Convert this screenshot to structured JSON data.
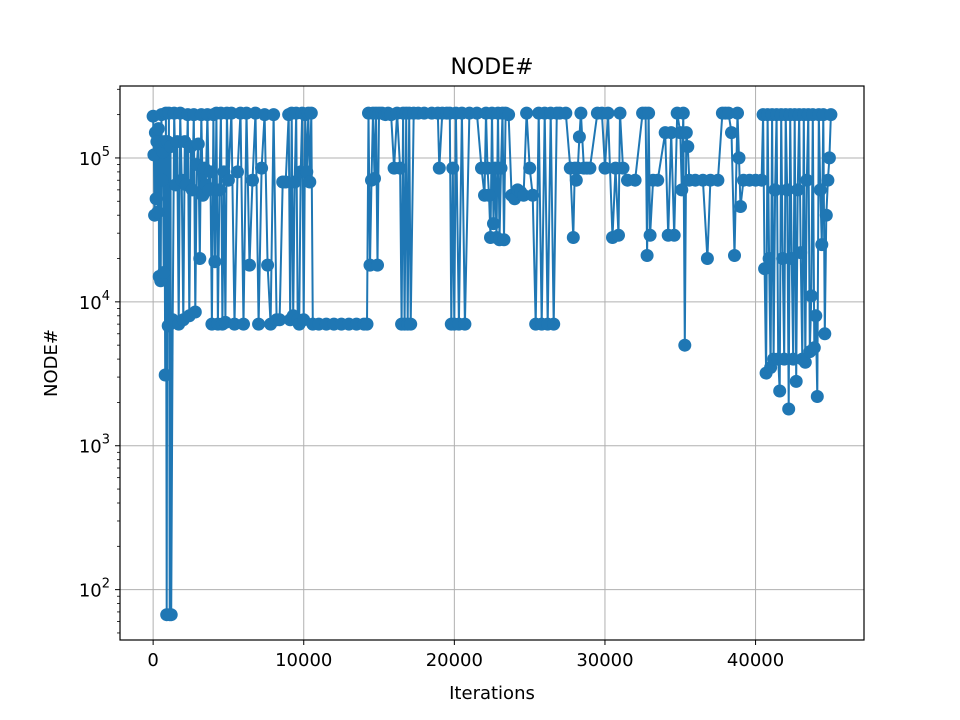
{
  "chart_data": {
    "type": "line",
    "title": "NODE#",
    "xlabel": "Iterations",
    "ylabel": "NODE#",
    "xlim": [
      -2200,
      47200
    ],
    "ylim_log10": [
      1.65,
      5.5
    ],
    "yscale": "log",
    "grid": true,
    "marker": "circle",
    "x_ticks": [
      0,
      10000,
      20000,
      30000,
      40000
    ],
    "x_tick_labels": [
      "0",
      "10000",
      "20000",
      "30000",
      "40000"
    ],
    "y_ticks": [
      100,
      1000,
      10000,
      100000
    ],
    "y_tick_labels": [
      {
        "base": "10",
        "exp": "2"
      },
      {
        "base": "10",
        "exp": "3"
      },
      {
        "base": "10",
        "exp": "4"
      },
      {
        "base": "10",
        "exp": "5"
      }
    ],
    "series": [
      {
        "color": "#1f77b4",
        "points": [
          [
            0,
            195000
          ],
          [
            50,
            105000
          ],
          [
            100,
            40000
          ],
          [
            150,
            150000
          ],
          [
            200,
            52000
          ],
          [
            250,
            130000
          ],
          [
            300,
            42000
          ],
          [
            350,
            160000
          ],
          [
            400,
            15000
          ],
          [
            450,
            120000
          ],
          [
            500,
            14000
          ],
          [
            550,
            200000
          ],
          [
            600,
            70000
          ],
          [
            650,
            110000
          ],
          [
            700,
            16000
          ],
          [
            750,
            130000
          ],
          [
            800,
            3100
          ],
          [
            850,
            205000
          ],
          [
            900,
            67
          ],
          [
            950,
            130000
          ],
          [
            1000,
            6800
          ],
          [
            1050,
            205000
          ],
          [
            1100,
            67
          ],
          [
            1150,
            120000
          ],
          [
            1200,
            67
          ],
          [
            1300,
            7500
          ],
          [
            1400,
            205000
          ],
          [
            1500,
            65000
          ],
          [
            1600,
            130000
          ],
          [
            1700,
            7000
          ],
          [
            1800,
            205000
          ],
          [
            1900,
            70000
          ],
          [
            2000,
            7500
          ],
          [
            2100,
            130000
          ],
          [
            2200,
            65000
          ],
          [
            2300,
            200000
          ],
          [
            2400,
            8000
          ],
          [
            2500,
            120000
          ],
          [
            2600,
            60000
          ],
          [
            2700,
            200000
          ],
          [
            2800,
            8500
          ],
          [
            2900,
            90000
          ],
          [
            3000,
            125000
          ],
          [
            3100,
            20000
          ],
          [
            3200,
            200000
          ],
          [
            3300,
            55000
          ],
          [
            3400,
            85000
          ],
          [
            3500,
            65000
          ],
          [
            3600,
            200000
          ],
          [
            3700,
            60000
          ],
          [
            3800,
            80000
          ],
          [
            3900,
            7000
          ],
          [
            4000,
            200000
          ],
          [
            4100,
            19000
          ],
          [
            4200,
            205000
          ],
          [
            4300,
            7000
          ],
          [
            4400,
            60000
          ],
          [
            4500,
            205000
          ],
          [
            4600,
            7000
          ],
          [
            4700,
            80000
          ],
          [
            4800,
            7200
          ],
          [
            4900,
            205000
          ],
          [
            5000,
            70000
          ],
          [
            5200,
            205000
          ],
          [
            5400,
            7000
          ],
          [
            5600,
            80000
          ],
          [
            5800,
            205000
          ],
          [
            6000,
            7000
          ],
          [
            6200,
            205000
          ],
          [
            6400,
            18000
          ],
          [
            6600,
            70000
          ],
          [
            6800,
            205000
          ],
          [
            7000,
            7000
          ],
          [
            7200,
            85000
          ],
          [
            7400,
            200000
          ],
          [
            7600,
            18000
          ],
          [
            7800,
            7000
          ],
          [
            8000,
            200000
          ],
          [
            8200,
            7500
          ],
          [
            8400,
            7500
          ],
          [
            8600,
            68000
          ],
          [
            8800,
            68000
          ],
          [
            9000,
            200000
          ],
          [
            9100,
            7500
          ],
          [
            9200,
            205000
          ],
          [
            9300,
            8000
          ],
          [
            9400,
            68000
          ],
          [
            9500,
            205000
          ],
          [
            9600,
            7500
          ],
          [
            9700,
            7000
          ],
          [
            9800,
            80000
          ],
          [
            9900,
            205000
          ],
          [
            10000,
            7500
          ],
          [
            10100,
            200000
          ],
          [
            10200,
            80000
          ],
          [
            10300,
            205000
          ],
          [
            10400,
            68000
          ],
          [
            10500,
            205000
          ],
          [
            10600,
            7000
          ],
          [
            11000,
            7000
          ],
          [
            11500,
            7000
          ],
          [
            12000,
            7000
          ],
          [
            12500,
            7000
          ],
          [
            13000,
            7000
          ],
          [
            13500,
            7000
          ],
          [
            14000,
            7000
          ],
          [
            14200,
            7000
          ],
          [
            14300,
            205000
          ],
          [
            14400,
            18000
          ],
          [
            14500,
            70000
          ],
          [
            14600,
            205000
          ],
          [
            14700,
            72000
          ],
          [
            14800,
            205000
          ],
          [
            14900,
            18000
          ],
          [
            15000,
            205000
          ],
          [
            15200,
            205000
          ],
          [
            15400,
            200000
          ],
          [
            15600,
            205000
          ],
          [
            15800,
            200000
          ],
          [
            16000,
            85000
          ],
          [
            16200,
            205000
          ],
          [
            16400,
            85000
          ],
          [
            16500,
            7000
          ],
          [
            16600,
            205000
          ],
          [
            16700,
            7000
          ],
          [
            16800,
            205000
          ],
          [
            16900,
            7000
          ],
          [
            17000,
            205000
          ],
          [
            17100,
            7000
          ],
          [
            17300,
            205000
          ],
          [
            17600,
            205000
          ],
          [
            18000,
            205000
          ],
          [
            18500,
            205000
          ],
          [
            18900,
            205000
          ],
          [
            19000,
            85000
          ],
          [
            19200,
            205000
          ],
          [
            19500,
            205000
          ],
          [
            19700,
            205000
          ],
          [
            19800,
            7000
          ],
          [
            19900,
            85000
          ],
          [
            20000,
            7000
          ],
          [
            20100,
            205000
          ],
          [
            20300,
            7000
          ],
          [
            20500,
            205000
          ],
          [
            20700,
            7000
          ],
          [
            21000,
            205000
          ],
          [
            21500,
            205000
          ],
          [
            21800,
            85000
          ],
          [
            22000,
            55000
          ],
          [
            22100,
            205000
          ],
          [
            22200,
            85000
          ],
          [
            22300,
            55000
          ],
          [
            22400,
            28000
          ],
          [
            22500,
            205000
          ],
          [
            22600,
            35000
          ],
          [
            22700,
            85000
          ],
          [
            22800,
            28000
          ],
          [
            22900,
            205000
          ],
          [
            23000,
            27000
          ],
          [
            23100,
            85000
          ],
          [
            23200,
            205000
          ],
          [
            23300,
            27000
          ],
          [
            23400,
            205000
          ],
          [
            23600,
            200000
          ],
          [
            23800,
            55000
          ],
          [
            24000,
            52000
          ],
          [
            24200,
            60000
          ],
          [
            24400,
            58000
          ],
          [
            24600,
            55000
          ],
          [
            24800,
            205000
          ],
          [
            25000,
            85000
          ],
          [
            25200,
            55000
          ],
          [
            25400,
            7000
          ],
          [
            25600,
            205000
          ],
          [
            25800,
            7000
          ],
          [
            26000,
            205000
          ],
          [
            26200,
            7000
          ],
          [
            26400,
            205000
          ],
          [
            26600,
            7000
          ],
          [
            26800,
            205000
          ],
          [
            27000,
            205000
          ],
          [
            27400,
            205000
          ],
          [
            27700,
            85000
          ],
          [
            27900,
            28000
          ],
          [
            28000,
            85000
          ],
          [
            28100,
            70000
          ],
          [
            28200,
            85000
          ],
          [
            28300,
            140000
          ],
          [
            28400,
            205000
          ],
          [
            28600,
            85000
          ],
          [
            28800,
            85000
          ],
          [
            29000,
            85000
          ],
          [
            29500,
            205000
          ],
          [
            29800,
            205000
          ],
          [
            30000,
            85000
          ],
          [
            30200,
            205000
          ],
          [
            30500,
            28000
          ],
          [
            30700,
            85000
          ],
          [
            30900,
            29000
          ],
          [
            31000,
            205000
          ],
          [
            31200,
            85000
          ],
          [
            31500,
            70000
          ],
          [
            32000,
            70000
          ],
          [
            32500,
            205000
          ],
          [
            32700,
            205000
          ],
          [
            32800,
            21000
          ],
          [
            32900,
            205000
          ],
          [
            33000,
            29000
          ],
          [
            33200,
            70000
          ],
          [
            33500,
            70000
          ],
          [
            34000,
            150000
          ],
          [
            34200,
            29000
          ],
          [
            34400,
            150000
          ],
          [
            34600,
            29000
          ],
          [
            34800,
            205000
          ],
          [
            35000,
            150000
          ],
          [
            35100,
            60000
          ],
          [
            35200,
            205000
          ],
          [
            35300,
            5000
          ],
          [
            35400,
            150000
          ],
          [
            35500,
            120000
          ],
          [
            35600,
            70000
          ],
          [
            36000,
            70000
          ],
          [
            36500,
            70000
          ],
          [
            36800,
            20000
          ],
          [
            37000,
            70000
          ],
          [
            37500,
            70000
          ],
          [
            37800,
            205000
          ],
          [
            38000,
            205000
          ],
          [
            38200,
            205000
          ],
          [
            38400,
            150000
          ],
          [
            38600,
            21000
          ],
          [
            38800,
            205000
          ],
          [
            38900,
            100000
          ],
          [
            39000,
            46000
          ],
          [
            39200,
            70000
          ],
          [
            39600,
            70000
          ],
          [
            40000,
            70000
          ],
          [
            40400,
            70000
          ],
          [
            40500,
            200000
          ],
          [
            40600,
            17000
          ],
          [
            40700,
            3200
          ],
          [
            40800,
            200000
          ],
          [
            40900,
            20000
          ],
          [
            41000,
            3500
          ],
          [
            41100,
            200000
          ],
          [
            41200,
            4000
          ],
          [
            41300,
            60000
          ],
          [
            41400,
            200000
          ],
          [
            41500,
            4000
          ],
          [
            41600,
            2400
          ],
          [
            41700,
            200000
          ],
          [
            41800,
            20000
          ],
          [
            41900,
            4000
          ],
          [
            42000,
            200000
          ],
          [
            42100,
            60000
          ],
          [
            42200,
            1800
          ],
          [
            42300,
            200000
          ],
          [
            42400,
            20000
          ],
          [
            42500,
            4000
          ],
          [
            42600,
            200000
          ],
          [
            42700,
            2800
          ],
          [
            42800,
            60000
          ],
          [
            42900,
            200000
          ],
          [
            43000,
            22000
          ],
          [
            43100,
            4000
          ],
          [
            43200,
            200000
          ],
          [
            43300,
            3800
          ],
          [
            43400,
            70000
          ],
          [
            43500,
            200000
          ],
          [
            43600,
            4500
          ],
          [
            43700,
            11000
          ],
          [
            43800,
            200000
          ],
          [
            43900,
            4800
          ],
          [
            44000,
            8000
          ],
          [
            44100,
            2200
          ],
          [
            44200,
            200000
          ],
          [
            44300,
            60000
          ],
          [
            44400,
            25000
          ],
          [
            44500,
            200000
          ],
          [
            44600,
            6000
          ],
          [
            44700,
            40000
          ],
          [
            44800,
            70000
          ],
          [
            44900,
            100000
          ],
          [
            45000,
            200000
          ]
        ]
      }
    ]
  }
}
